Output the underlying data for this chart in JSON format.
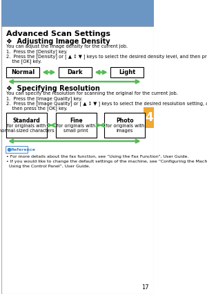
{
  "page_num": "17",
  "header_color": "#6b96c4",
  "tab_color": "#f0a830",
  "tab_text": "4",
  "bg_color": "#ffffff",
  "border_color": "#aaaaaa",
  "title": "Advanced Scan Settings",
  "section1_heading": "❖  Adjusting Image Density",
  "density_boxes": [
    "Normal",
    "Dark",
    "Light"
  ],
  "section2_heading": "❖  Specifying Resolution",
  "resolution_boxes": [
    [
      "Standard",
      "for originals with\nnormal-sized characters"
    ],
    [
      "Fine",
      "for originals with\nsmall print"
    ],
    [
      "Photo",
      "for originals with\nimages"
    ]
  ],
  "arrow_color": "#55bb55",
  "reference_label": "Reference",
  "reference_icon_color": "#4488cc"
}
